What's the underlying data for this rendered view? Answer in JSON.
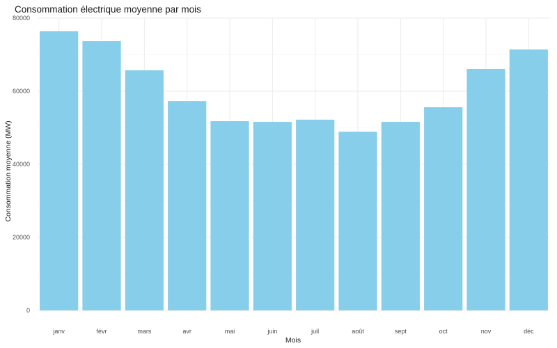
{
  "chart_data": {
    "type": "bar",
    "title": "Consommation électrique moyenne par mois",
    "xlabel": "Mois",
    "ylabel": "Consommation moyenne (MW)",
    "categories": [
      "janv",
      "févr",
      "mars",
      "avr",
      "mai",
      "juin",
      "juil",
      "août",
      "sept",
      "oct",
      "nov",
      "déc"
    ],
    "values": [
      76400,
      73700,
      65700,
      57300,
      51800,
      51600,
      52200,
      48900,
      51600,
      55600,
      66100,
      71400
    ],
    "ylim": [
      0,
      80000
    ],
    "yticks": [
      0,
      20000,
      40000,
      60000,
      80000
    ],
    "ytick_labels": [
      "0",
      "20000",
      "40000",
      "60000",
      "80000"
    ],
    "grid": true,
    "legend": "none",
    "bar_color": "#87CEEB"
  }
}
